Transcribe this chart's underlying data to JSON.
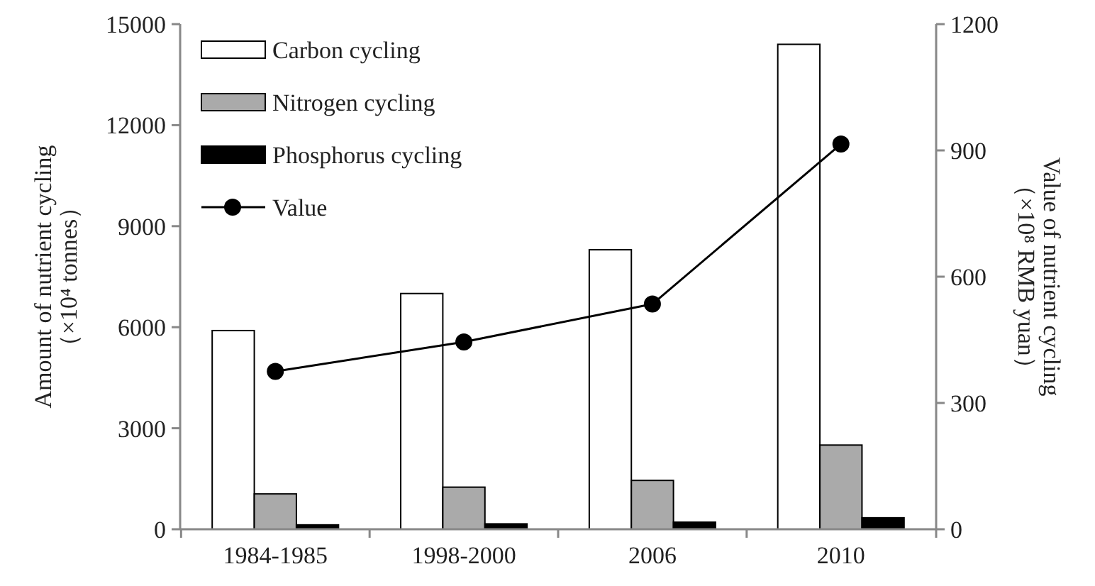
{
  "chart_data": {
    "type": "bar",
    "categories": [
      "1984-1985",
      "1998-2000",
      "2006",
      "2010"
    ],
    "ylabel": "Amount of nutrient cycling\n（×10⁴ tonnes）",
    "y2label": "Value of nutrient cycling\n（×10⁸ RMB yuan）",
    "ylim": [
      0,
      15000
    ],
    "yticks": [
      0,
      3000,
      6000,
      9000,
      12000,
      15000
    ],
    "y2lim": [
      0,
      1200
    ],
    "y2ticks": [
      0,
      300,
      600,
      900,
      1200
    ],
    "grid": false,
    "legend": "top left",
    "series": [
      {
        "name": "Carbon cycling",
        "color": "#ffffff",
        "values": [
          5900,
          7000,
          8300,
          14400
        ]
      },
      {
        "name": "Nitrogen cycling",
        "color": "#aaaaaa",
        "values": [
          1050,
          1250,
          1450,
          2500
        ]
      },
      {
        "name": "Phosphorus cycling",
        "color": "#000000",
        "values": [
          130,
          160,
          210,
          340
        ]
      },
      {
        "name": "Value",
        "type": "line",
        "axis": "y2",
        "marker": "circle",
        "line_style": "solid",
        "color": "#000000",
        "values": [
          375,
          445,
          535,
          915
        ]
      }
    ]
  }
}
